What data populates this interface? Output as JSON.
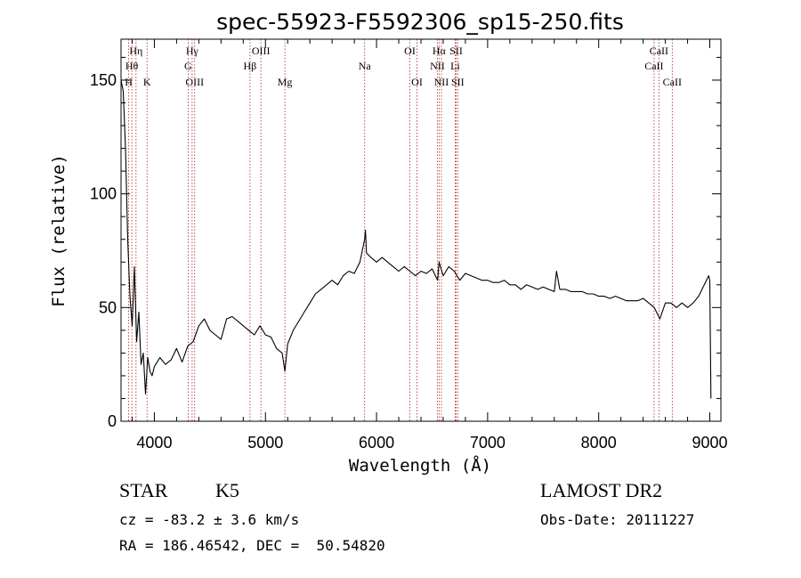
{
  "chart_data": {
    "type": "line",
    "title": "spec-55923-F5592306_sp15-250.fits",
    "xlabel": "Wavelength (Å)",
    "ylabel": "Flux (relative)",
    "xlim": [
      3700,
      9100
    ],
    "ylim": [
      0,
      168
    ],
    "xticks": [
      4000,
      5000,
      6000,
      7000,
      8000,
      9000
    ],
    "yticks": [
      0,
      50,
      100,
      150
    ],
    "xtick_labels": [
      "4000",
      "5000",
      "6000",
      "7000",
      "8000",
      "9000"
    ],
    "ytick_labels": [
      "0",
      "50",
      "100",
      "150"
    ],
    "grid": false,
    "series": [
      {
        "x": [
          3700,
          3720,
          3740,
          3760,
          3780,
          3800,
          3820,
          3840,
          3860,
          3880,
          3900,
          3920,
          3940,
          3960,
          3980,
          4000,
          4050,
          4100,
          4150,
          4200,
          4250,
          4300,
          4350,
          4400,
          4450,
          4500,
          4550,
          4600,
          4650,
          4700,
          4750,
          4800,
          4850,
          4900,
          4950,
          5000,
          5050,
          5100,
          5150,
          5175,
          5200,
          5250,
          5300,
          5350,
          5400,
          5450,
          5500,
          5550,
          5600,
          5650,
          5700,
          5750,
          5800,
          5850,
          5893,
          5900,
          5910,
          5950,
          6000,
          6050,
          6100,
          6150,
          6200,
          6250,
          6300,
          6350,
          6400,
          6450,
          6500,
          6550,
          6563,
          6600,
          6650,
          6700,
          6750,
          6800,
          6850,
          6900,
          6950,
          7000,
          7050,
          7100,
          7150,
          7200,
          7250,
          7300,
          7350,
          7400,
          7450,
          7500,
          7550,
          7600,
          7620,
          7650,
          7700,
          7750,
          7800,
          7850,
          7900,
          7950,
          8000,
          8050,
          8100,
          8150,
          8200,
          8250,
          8300,
          8350,
          8400,
          8450,
          8500,
          8550,
          8600,
          8650,
          8700,
          8750,
          8800,
          8850,
          8900,
          8950,
          8990,
          9000,
          9010
        ],
        "y": [
          150,
          145,
          120,
          80,
          55,
          42,
          68,
          35,
          48,
          25,
          30,
          12,
          28,
          22,
          20,
          24,
          28,
          25,
          27,
          32,
          26,
          33,
          35,
          42,
          45,
          40,
          38,
          36,
          45,
          46,
          44,
          42,
          40,
          38,
          42,
          38,
          37,
          32,
          30,
          22,
          34,
          40,
          44,
          48,
          52,
          56,
          58,
          60,
          62,
          60,
          64,
          66,
          65,
          70,
          80,
          84,
          74,
          72,
          70,
          72,
          70,
          68,
          66,
          68,
          66,
          64,
          66,
          65,
          67,
          62,
          70,
          64,
          68,
          66,
          62,
          65,
          64,
          63,
          62,
          62,
          61,
          61,
          62,
          60,
          60,
          58,
          60,
          59,
          58,
          59,
          58,
          57,
          66,
          58,
          58,
          57,
          57,
          57,
          56,
          56,
          55,
          55,
          54,
          55,
          54,
          53,
          53,
          53,
          54,
          52,
          50,
          45,
          52,
          52,
          50,
          52,
          50,
          52,
          55,
          60,
          64,
          62,
          10
        ]
      }
    ],
    "line_markers": [
      {
        "label": "Hη",
        "x": 3835,
        "row": 1
      },
      {
        "label": "Hθ",
        "x": 3797,
        "row": 2
      },
      {
        "label": "H",
        "x": 3769,
        "row": 3
      },
      {
        "label": "K",
        "x": 3934,
        "row": 3
      },
      {
        "label": "Hγ",
        "x": 4340,
        "row": 1
      },
      {
        "label": "G",
        "x": 4304,
        "row": 2
      },
      {
        "label": "OIII",
        "x": 4363,
        "row": 3
      },
      {
        "label": "OIII",
        "x": 4959,
        "row": 1
      },
      {
        "label": "Hβ",
        "x": 4861,
        "row": 2
      },
      {
        "label": "Mg",
        "x": 5175,
        "row": 3
      },
      {
        "label": "Na",
        "x": 5893,
        "row": 2
      },
      {
        "label": "OI",
        "x": 6300,
        "row": 1
      },
      {
        "label": "OI",
        "x": 6364,
        "row": 3
      },
      {
        "label": "Hα",
        "x": 6563,
        "row": 1
      },
      {
        "label": "NII",
        "x": 6548,
        "row": 2
      },
      {
        "label": "NII",
        "x": 6584,
        "row": 3
      },
      {
        "label": "SII",
        "x": 6717,
        "row": 1
      },
      {
        "label": "Li",
        "x": 6708,
        "row": 2
      },
      {
        "label": "SII",
        "x": 6731,
        "row": 3
      },
      {
        "label": "CaII",
        "x": 8542,
        "row": 1
      },
      {
        "label": "CaII",
        "x": 8498,
        "row": 2
      },
      {
        "label": "CaII",
        "x": 8662,
        "row": 3
      }
    ]
  },
  "info": {
    "class_label": "STAR",
    "subclass_label": "K5",
    "survey": "LAMOST DR2",
    "redshift": "cz = -83.2 ± 3.6 km/s",
    "obs_date": "Obs-Date: 20111227",
    "coords": "RA = 186.46542, DEC =  50.54820"
  },
  "colors": {
    "spectrum": "#000000",
    "marker_line": "#b22222",
    "background": "#ffffff"
  }
}
